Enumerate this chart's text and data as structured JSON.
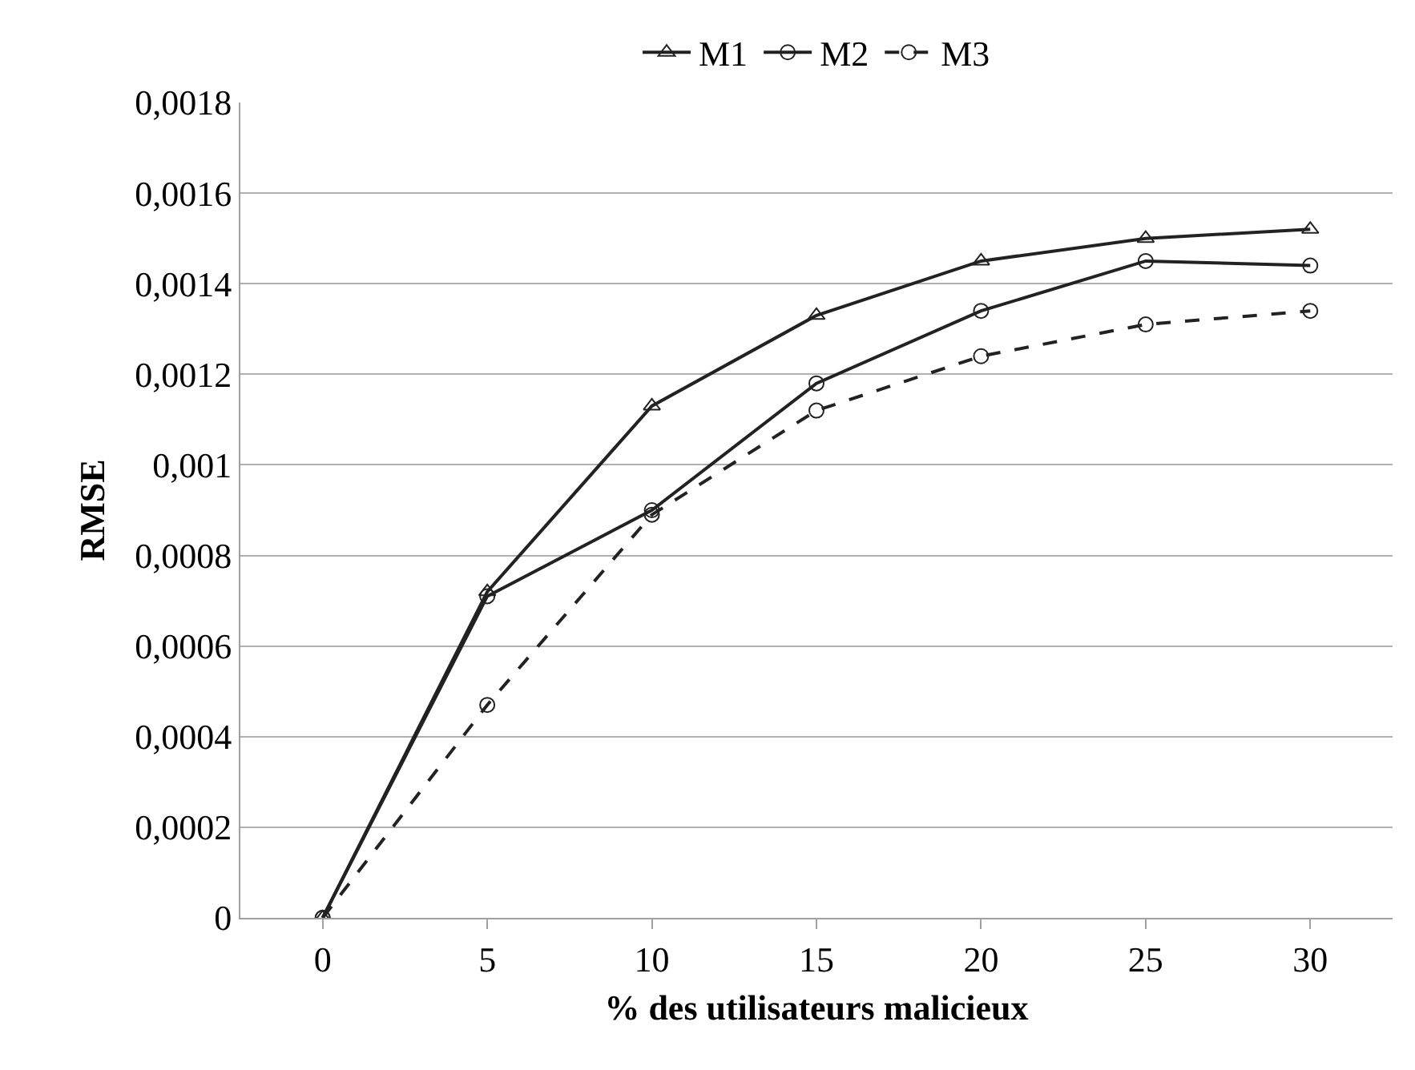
{
  "chart_data": {
    "type": "line",
    "xlabel": "% des utilisateurs malicieux",
    "ylabel": "RMSE",
    "x": [
      0,
      5,
      10,
      15,
      20,
      25,
      30
    ],
    "series": [
      {
        "name": "M1",
        "color": "#222222",
        "marker": "triangle",
        "line_style": "solid",
        "values": [
          0,
          0.00072,
          0.00113,
          0.00133,
          0.00145,
          0.0015,
          0.00152
        ]
      },
      {
        "name": "M2",
        "color": "#222222",
        "marker": "circle",
        "line_style": "solid",
        "values": [
          0,
          0.00071,
          0.0009,
          0.00118,
          0.00134,
          0.00145,
          0.00144
        ]
      },
      {
        "name": "M3",
        "color": "#222222",
        "marker": "circle",
        "line_style": "dashed",
        "values": [
          0,
          0.00047,
          0.00089,
          0.00112,
          0.00124,
          0.00131,
          0.00134
        ]
      }
    ],
    "xlim": [
      -2.5,
      32.5
    ],
    "xticks": [
      0,
      5,
      10,
      15,
      20,
      25,
      30
    ],
    "ylim": [
      0,
      0.0018
    ],
    "yticks": [
      {
        "value": 0,
        "label": "0"
      },
      {
        "value": 0.0002,
        "label": "0,0002"
      },
      {
        "value": 0.0004,
        "label": "0,0004"
      },
      {
        "value": 0.0006,
        "label": "0,0006"
      },
      {
        "value": 0.0008,
        "label": "0,0008"
      },
      {
        "value": 0.001,
        "label": "0,001"
      },
      {
        "value": 0.0012,
        "label": "0,0012"
      },
      {
        "value": 0.0014,
        "label": "0,0014"
      },
      {
        "value": 0.0016,
        "label": "0,0016"
      },
      {
        "value": 0.0018,
        "label": "0,0018"
      }
    ],
    "grid": "y",
    "legend": "top"
  }
}
